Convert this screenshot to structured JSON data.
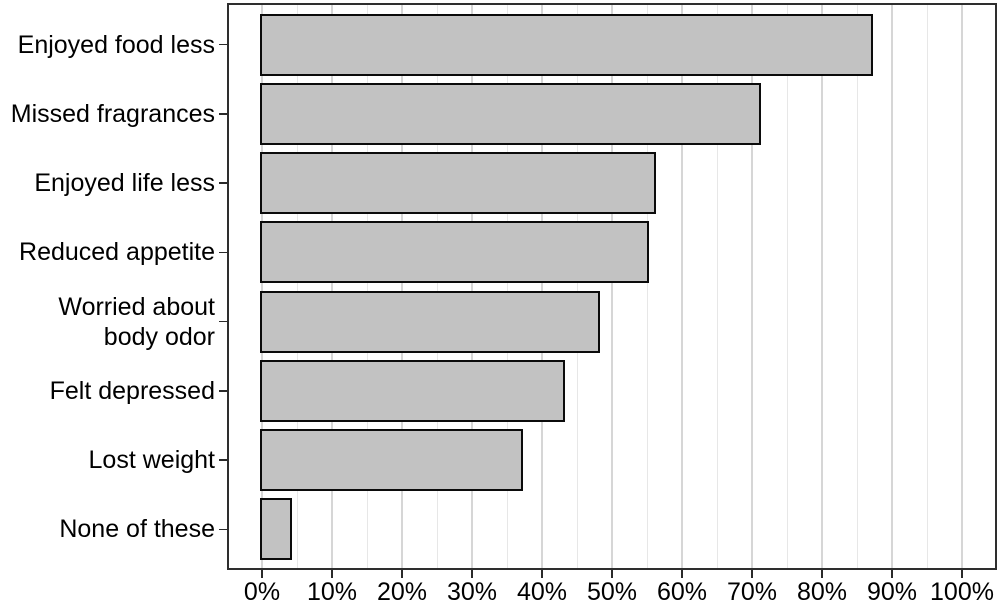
{
  "chart_data": {
    "type": "bar",
    "orientation": "horizontal",
    "title": "",
    "xlabel": "",
    "ylabel": "",
    "categories": [
      "Enjoyed food less",
      "Missed fragrances",
      "Enjoyed life less",
      "Reduced appetite",
      "Worried about\nbody odor",
      "Felt depressed",
      "Lost weight",
      "None of these"
    ],
    "values": [
      87,
      71,
      56,
      55,
      48,
      43,
      37,
      4
    ],
    "value_unit": "%",
    "x_tick_values": [
      0,
      10,
      20,
      30,
      40,
      50,
      60,
      70,
      80,
      90,
      100
    ],
    "x_tick_labels": [
      "0%",
      "10%",
      "20%",
      "30%",
      "40%",
      "50%",
      "60%",
      "70%",
      "80%",
      "90%",
      "100%"
    ],
    "xlim": [
      -5,
      105
    ],
    "grid": {
      "vertical_only": true,
      "minor_step": 5,
      "major_step": 10,
      "minor_color": "#e7e7e7",
      "major_color": "#d6d6d6"
    },
    "legend": "none",
    "colors": {
      "bar_fill": "#c2c2c2",
      "bar_border": "#0b0b0b",
      "panel_border": "#2e2e2e",
      "tick": "#2a2a2a",
      "text": "#000000",
      "background": "#ffffff"
    }
  }
}
